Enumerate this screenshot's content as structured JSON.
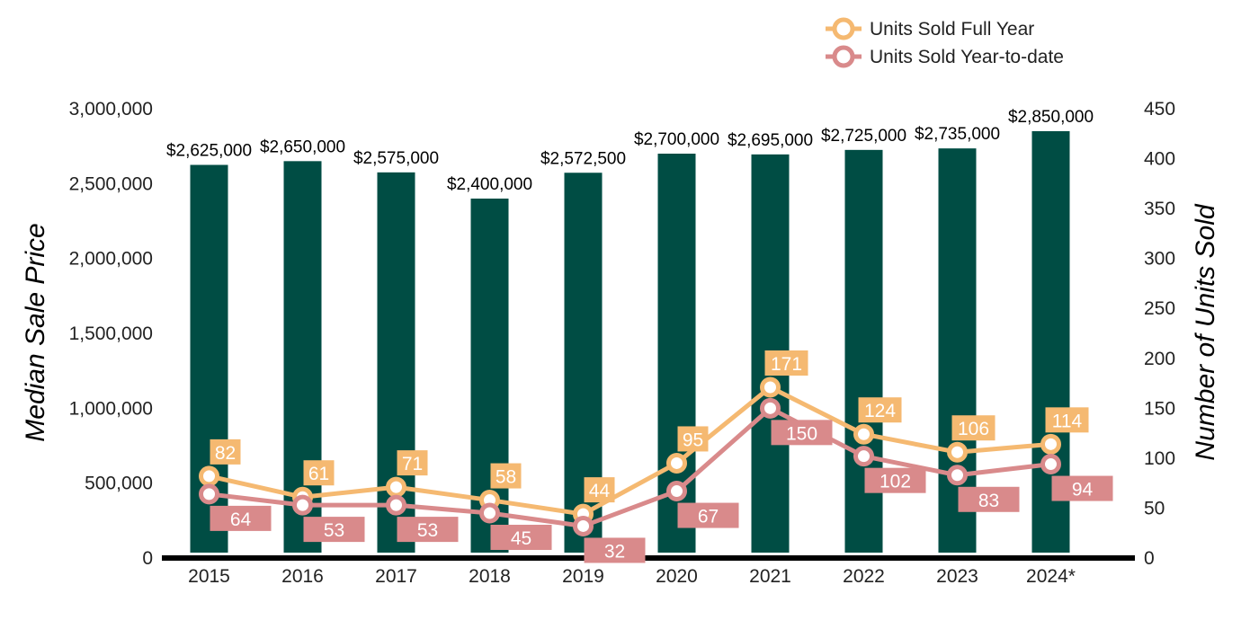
{
  "chart_data": {
    "type": "bar",
    "categories": [
      "2015",
      "2016",
      "2017",
      "2018",
      "2019",
      "2020",
      "2021",
      "2022",
      "2023",
      "2024*"
    ],
    "bar_series": {
      "name": "",
      "values": [
        2625000,
        2650000,
        2575000,
        2400000,
        2572500,
        2700000,
        2695000,
        2725000,
        2735000,
        2850000
      ],
      "labels": [
        "$2,625,000",
        "$2,650,000",
        "$2,575,000",
        "$2,400,000",
        "$2,572,500",
        "$2,700,000",
        "$2,695,000",
        "$2,725,000",
        "$2,735,000",
        "$2,850,000"
      ],
      "color": "#004d44"
    },
    "line_series": [
      {
        "name": "Units Sold Full Year",
        "values": [
          82,
          61,
          71,
          58,
          44,
          95,
          171,
          124,
          106,
          114
        ],
        "color": "#f5b971"
      },
      {
        "name": "Units Sold Year-to-date",
        "values": [
          64,
          53,
          53,
          45,
          32,
          67,
          150,
          102,
          83,
          94
        ],
        "color": "#d98a8b"
      }
    ],
    "ylabel": "Median Sale Price",
    "ylabel_right": "Number of Units Sold",
    "ylim": [
      0,
      3000000
    ],
    "ylim_right": [
      0,
      450
    ],
    "yticks": [
      "0",
      "500,000",
      "1,000,000",
      "1,500,000",
      "2,000,000",
      "2,500,000",
      "3,000,000"
    ],
    "yticks_right": [
      "0",
      "50",
      "100",
      "150",
      "200",
      "250",
      "300",
      "350",
      "400",
      "450"
    ],
    "legend_position": "top-right",
    "grid": false
  }
}
